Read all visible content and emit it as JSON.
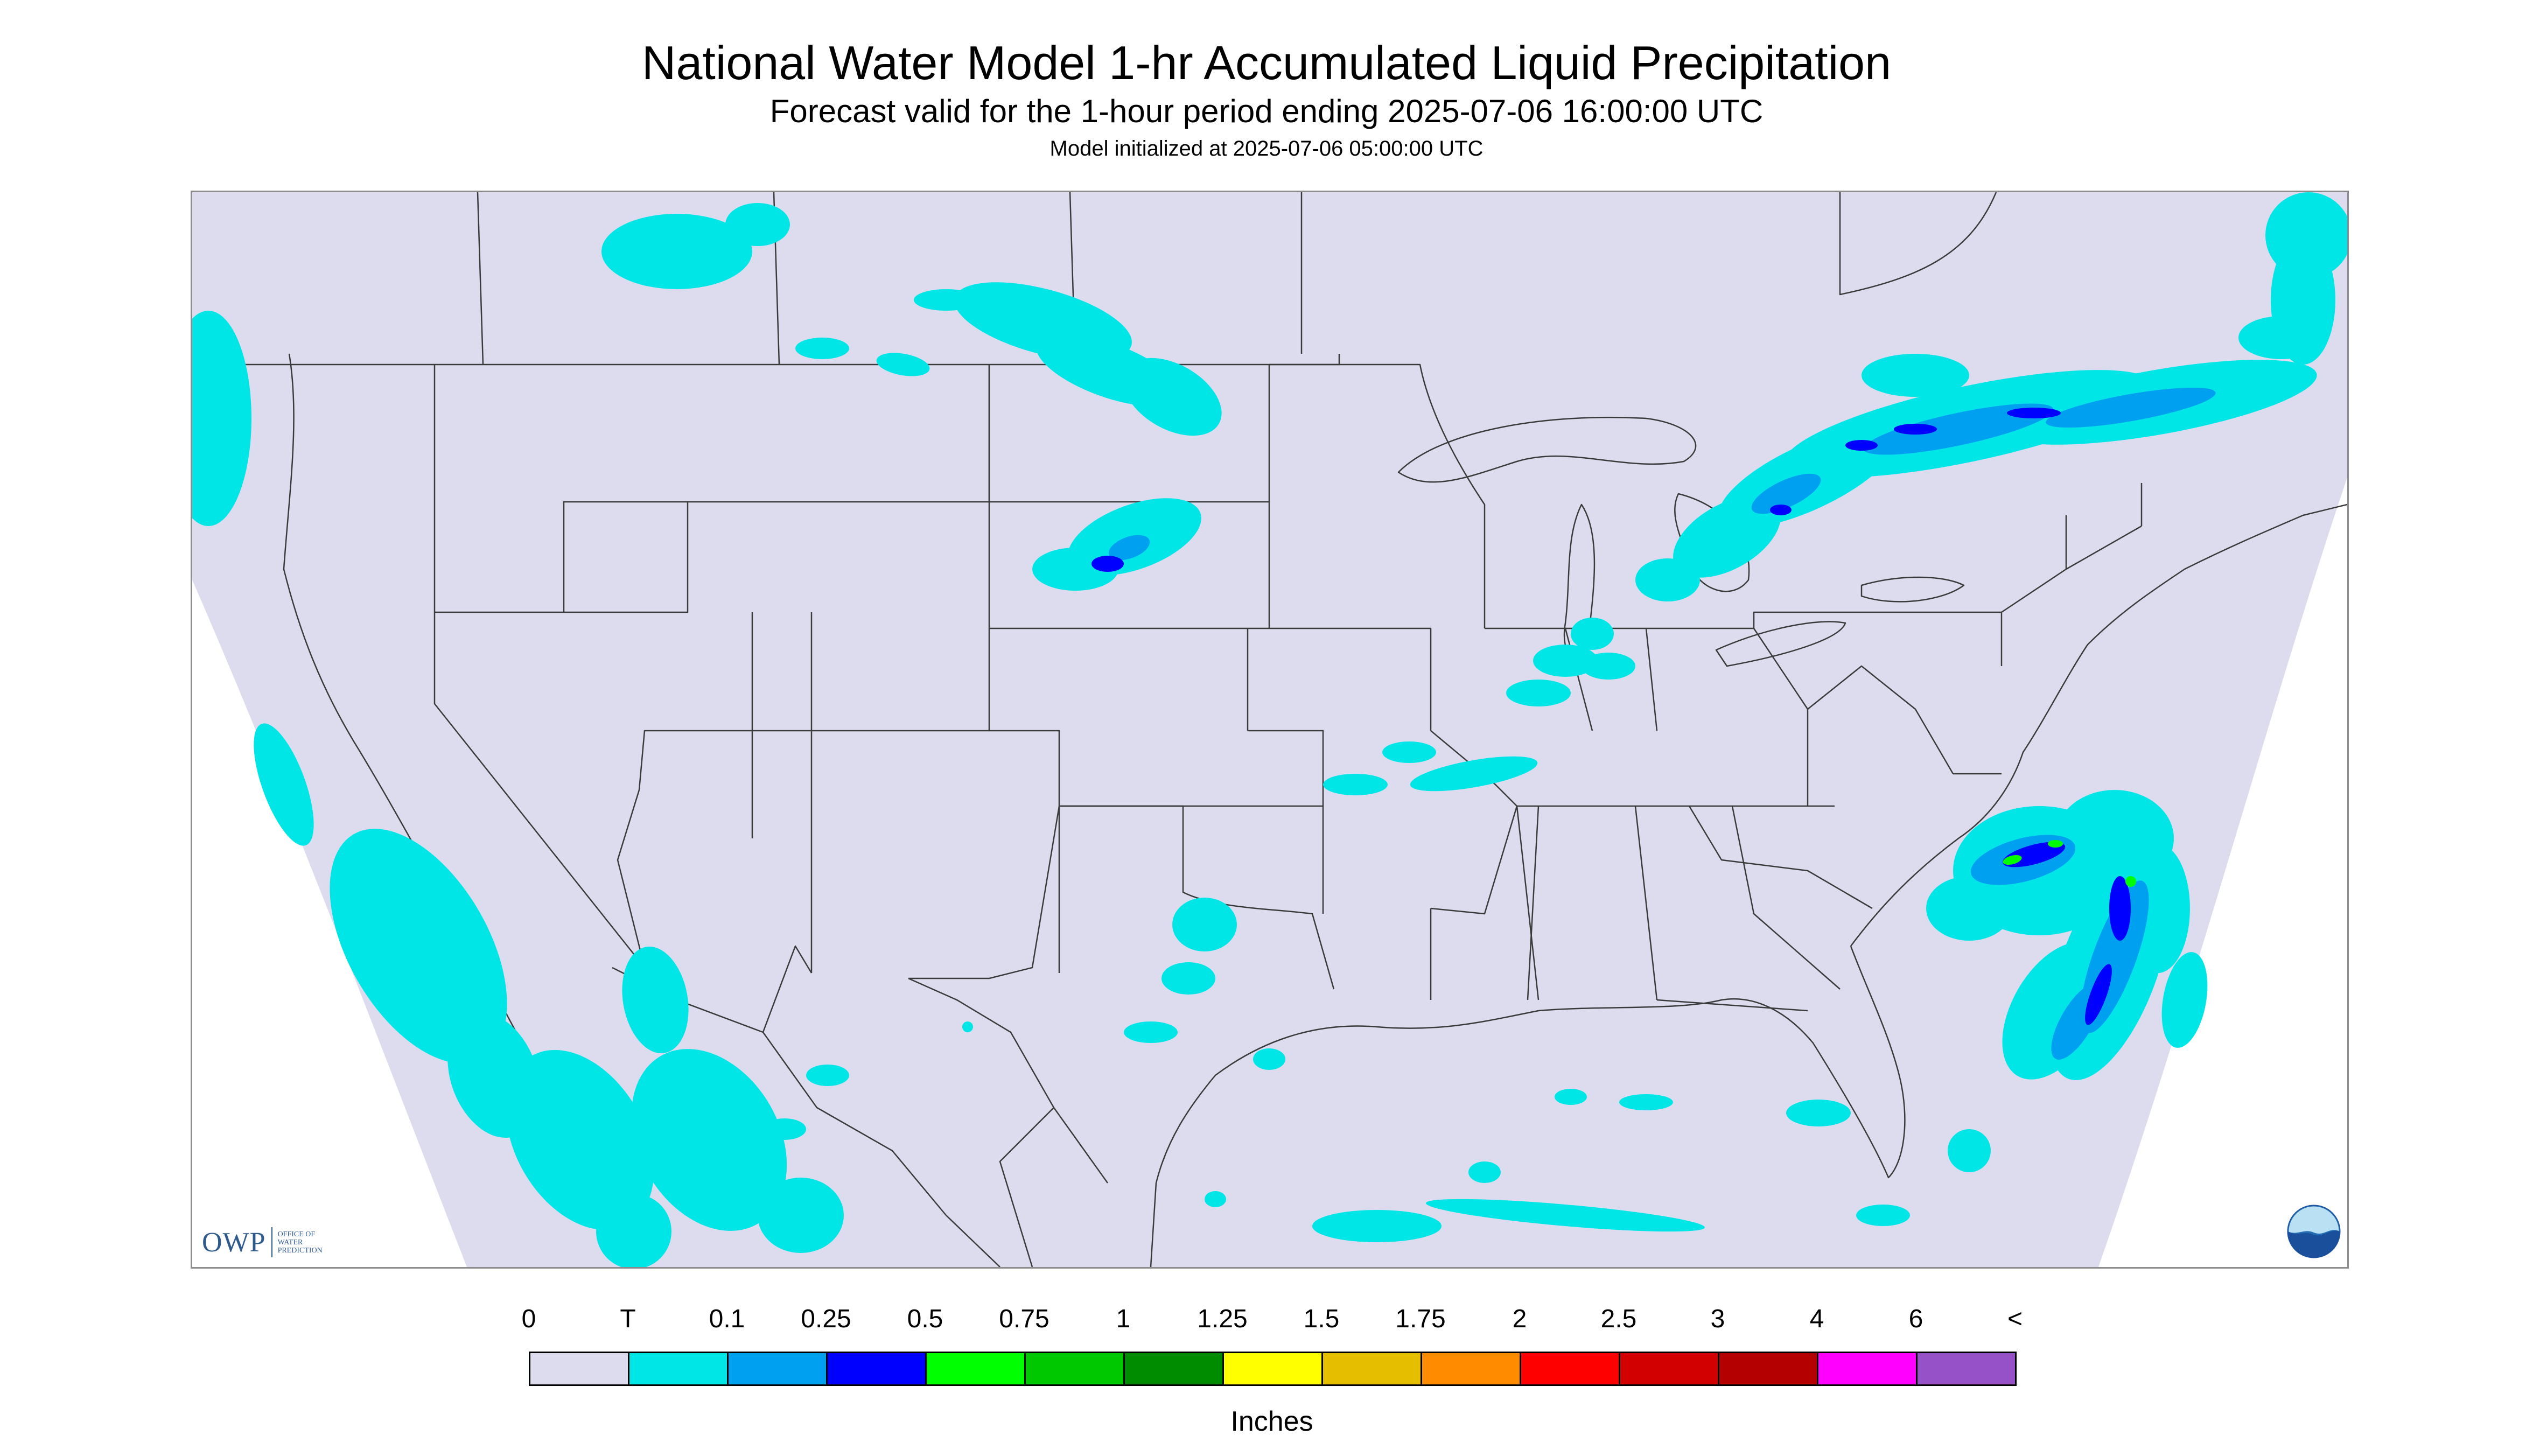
{
  "header": {
    "title": "National Water Model 1-hr Accumulated Liquid Precipitation",
    "subtitle": "Forecast valid for the 1-hour period ending 2025-07-06 16:00:00 UTC",
    "init_line": "Model initialized at 2025-07-06 05:00:00 UTC"
  },
  "map": {
    "background_color": "#dcdcee",
    "outside_color": "#ffffff",
    "boundary_color": "#3a3a3a",
    "precip_colors": {
      "trace": "#00e6e6",
      "light": "#00a0f0",
      "moderate": "#0000ff",
      "heavy": "#00ff00"
    }
  },
  "logos": {
    "owp_mark": "OWP",
    "owp_office": [
      "OFFICE OF",
      "WATER",
      "PREDICTION"
    ],
    "noaa_icon": "noaa-logo-icon"
  },
  "legend": {
    "labels": [
      "0",
      "T",
      "0.1",
      "0.25",
      "0.5",
      "0.75",
      "1",
      "1.25",
      "1.5",
      "1.75",
      "2",
      "2.5",
      "3",
      "4",
      "6",
      "<"
    ],
    "colors": [
      "#dcdcee",
      "#00e6e6",
      "#00a0f0",
      "#0000ff",
      "#00ff00",
      "#00c800",
      "#008c00",
      "#ffff00",
      "#e6be00",
      "#ff8c00",
      "#ff0000",
      "#d20000",
      "#b40000",
      "#ff00ff",
      "#9650c8"
    ],
    "units": "Inches"
  }
}
